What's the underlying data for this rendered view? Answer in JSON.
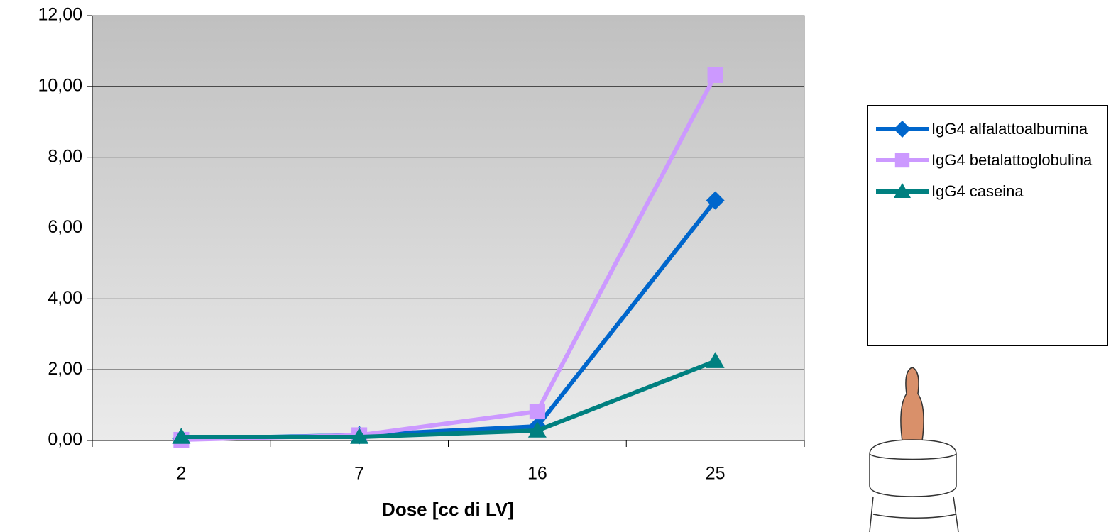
{
  "chart_data": {
    "type": "line",
    "x_label": "Dose [cc di LV]",
    "categories": [
      "2",
      "7",
      "16",
      "25"
    ],
    "series": [
      {
        "name": "IgG4 alfalattoalbumina",
        "color": "#0066cc",
        "marker": "diamond",
        "values": [
          0.05,
          0.15,
          0.4,
          6.78
        ]
      },
      {
        "name": "IgG4 betalattoglobulina",
        "color": "#cc99ff",
        "marker": "square",
        "values": [
          0.02,
          0.15,
          0.82,
          10.32
        ]
      },
      {
        "name": "IgG4 caseina",
        "color": "#008080",
        "marker": "triangle",
        "values": [
          0.1,
          0.1,
          0.28,
          2.24
        ]
      }
    ],
    "ylim": [
      0,
      12
    ],
    "yticks": [
      {
        "value": 0,
        "label": "0,00"
      },
      {
        "value": 2,
        "label": "2,00"
      },
      {
        "value": 4,
        "label": "4,00"
      },
      {
        "value": 6,
        "label": "6,00"
      },
      {
        "value": 8,
        "label": "8,00"
      },
      {
        "value": 10,
        "label": "10,00"
      },
      {
        "value": 12,
        "label": "12,00"
      }
    ],
    "grid": true,
    "legend": "right"
  }
}
